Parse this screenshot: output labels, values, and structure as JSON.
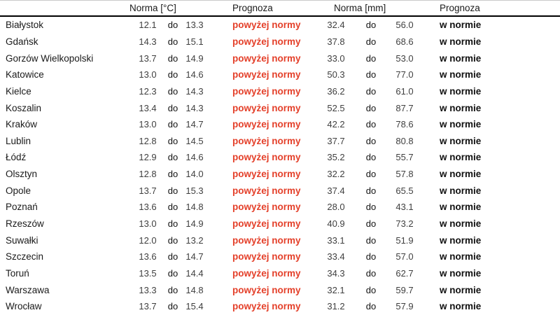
{
  "table": {
    "headers": {
      "norma_temp": "Norma [°C]",
      "prognoza_temp": "Prognoza",
      "norma_precip": "Norma [mm]",
      "prognoza_precip": "Prognoza"
    },
    "separator": "do",
    "colors": {
      "above_norm_red": "#e4402a",
      "in_norm_black": "#111111",
      "number_gray": "#3f3f3f",
      "header_rule": "#000000"
    },
    "rows": [
      {
        "city": "Białystok",
        "t_min": "12.1",
        "t_max": "13.3",
        "t_forecast": "powyżej normy",
        "p_min": "32.4",
        "p_max": "56.0",
        "p_forecast": "w normie"
      },
      {
        "city": "Gdańsk",
        "t_min": "14.3",
        "t_max": "15.1",
        "t_forecast": "powyżej normy",
        "p_min": "37.8",
        "p_max": "68.6",
        "p_forecast": "w normie"
      },
      {
        "city": "Gorzów Wielkopolski",
        "t_min": "13.7",
        "t_max": "14.9",
        "t_forecast": "powyżej normy",
        "p_min": "33.0",
        "p_max": "53.0",
        "p_forecast": "w normie"
      },
      {
        "city": "Katowice",
        "t_min": "13.0",
        "t_max": "14.6",
        "t_forecast": "powyżej normy",
        "p_min": "50.3",
        "p_max": "77.0",
        "p_forecast": "w normie"
      },
      {
        "city": "Kielce",
        "t_min": "12.3",
        "t_max": "14.3",
        "t_forecast": "powyżej normy",
        "p_min": "36.2",
        "p_max": "61.0",
        "p_forecast": "w normie"
      },
      {
        "city": "Koszalin",
        "t_min": "13.4",
        "t_max": "14.3",
        "t_forecast": "powyżej normy",
        "p_min": "52.5",
        "p_max": "87.7",
        "p_forecast": "w normie"
      },
      {
        "city": "Kraków",
        "t_min": "13.0",
        "t_max": "14.7",
        "t_forecast": "powyżej normy",
        "p_min": "42.2",
        "p_max": "78.6",
        "p_forecast": "w normie"
      },
      {
        "city": "Lublin",
        "t_min": "12.8",
        "t_max": "14.5",
        "t_forecast": "powyżej normy",
        "p_min": "37.7",
        "p_max": "80.8",
        "p_forecast": "w normie"
      },
      {
        "city": "Łódź",
        "t_min": "12.9",
        "t_max": "14.6",
        "t_forecast": "powyżej normy",
        "p_min": "35.2",
        "p_max": "55.7",
        "p_forecast": "w normie"
      },
      {
        "city": "Olsztyn",
        "t_min": "12.8",
        "t_max": "14.0",
        "t_forecast": "powyżej normy",
        "p_min": "32.2",
        "p_max": "57.8",
        "p_forecast": "w normie"
      },
      {
        "city": "Opole",
        "t_min": "13.7",
        "t_max": "15.3",
        "t_forecast": "powyżej normy",
        "p_min": "37.4",
        "p_max": "65.5",
        "p_forecast": "w normie"
      },
      {
        "city": "Poznań",
        "t_min": "13.6",
        "t_max": "14.8",
        "t_forecast": "powyżej normy",
        "p_min": "28.0",
        "p_max": "43.1",
        "p_forecast": "w normie"
      },
      {
        "city": "Rzeszów",
        "t_min": "13.0",
        "t_max": "14.9",
        "t_forecast": "powyżej normy",
        "p_min": "40.9",
        "p_max": "73.2",
        "p_forecast": "w normie"
      },
      {
        "city": "Suwałki",
        "t_min": "12.0",
        "t_max": "13.2",
        "t_forecast": "powyżej normy",
        "p_min": "33.1",
        "p_max": "51.9",
        "p_forecast": "w normie"
      },
      {
        "city": "Szczecin",
        "t_min": "13.6",
        "t_max": "14.7",
        "t_forecast": "powyżej normy",
        "p_min": "33.4",
        "p_max": "57.0",
        "p_forecast": "w normie"
      },
      {
        "city": "Toruń",
        "t_min": "13.5",
        "t_max": "14.4",
        "t_forecast": "powyżej normy",
        "p_min": "34.3",
        "p_max": "62.7",
        "p_forecast": "w normie"
      },
      {
        "city": "Warszawa",
        "t_min": "13.3",
        "t_max": "14.8",
        "t_forecast": "powyżej normy",
        "p_min": "32.1",
        "p_max": "59.7",
        "p_forecast": "w normie"
      },
      {
        "city": "Wrocław",
        "t_min": "13.7",
        "t_max": "15.4",
        "t_forecast": "powyżej normy",
        "p_min": "31.2",
        "p_max": "57.9",
        "p_forecast": "w normie"
      }
    ]
  }
}
